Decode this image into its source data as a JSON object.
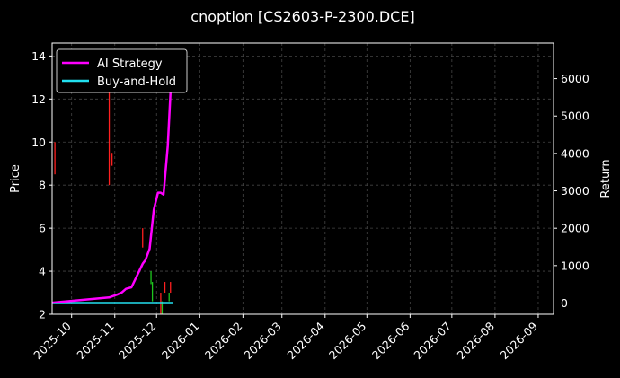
{
  "chart_data": {
    "type": "line",
    "title": "cnoption [CS2603-P-2300.DCE]",
    "ylabel_left": "Price",
    "ylabel_right": "Return",
    "background": "#000000",
    "grid": true,
    "legend_placement": "top-left",
    "x_ticks": [
      "2025-10",
      "2025-11",
      "2025-12",
      "2026-01",
      "2026-02",
      "2026-03",
      "2026-04",
      "2026-05",
      "2026-06",
      "2026-07",
      "2026-08",
      "2026-09"
    ],
    "x_range": [
      "2025-09-17",
      "2026-09-12"
    ],
    "y_left_ticks": [
      2,
      4,
      6,
      8,
      10,
      12,
      14
    ],
    "y_left_range": [
      2,
      14.6
    ],
    "y_right_ticks": [
      0,
      1000,
      2000,
      3000,
      4000,
      5000,
      6000
    ],
    "y_right_range": [
      -300,
      6950
    ],
    "legend": [
      {
        "name": "AI Strategy",
        "color": "#ff00ff"
      },
      {
        "name": "Buy-and-Hold",
        "color": "#22e0f0"
      }
    ],
    "series": [
      {
        "name": "AI Strategy",
        "axis": "right",
        "color": "#ff00ff",
        "points": [
          [
            "2025-09-17",
            10
          ],
          [
            "2025-10-28",
            150
          ],
          [
            "2025-11-03",
            230
          ],
          [
            "2025-11-06",
            280
          ],
          [
            "2025-11-09",
            380
          ],
          [
            "2025-11-13",
            420
          ],
          [
            "2025-11-21",
            1050
          ],
          [
            "2025-11-23",
            1150
          ],
          [
            "2025-11-26",
            1450
          ],
          [
            "2025-11-29",
            2500
          ],
          [
            "2025-12-02",
            2950
          ],
          [
            "2025-12-04",
            2950
          ],
          [
            "2025-12-06",
            2900
          ],
          [
            "2025-12-09",
            4200
          ],
          [
            "2025-12-12",
            6350
          ],
          [
            "2025-12-13",
            6700
          ]
        ]
      },
      {
        "name": "Buy-and-Hold",
        "axis": "right",
        "color": "#22e0f0",
        "points": [
          [
            "2025-09-17",
            0
          ],
          [
            "2025-12-13",
            0
          ]
        ]
      }
    ],
    "candles": [
      {
        "date": "2025-09-19",
        "low": 8.5,
        "high": 10.0,
        "color": "#ff2020"
      },
      {
        "date": "2025-10-28",
        "low": 8.0,
        "high": 12.6,
        "color": "#ff2020"
      },
      {
        "date": "2025-10-30",
        "low": 8.9,
        "high": 9.5,
        "color": "#ff2020"
      },
      {
        "date": "2025-11-21",
        "low": 5.1,
        "high": 6.0,
        "color": "#ff2020"
      },
      {
        "date": "2025-11-27",
        "low": 3.4,
        "high": 4.0,
        "color": "#1ec81e"
      },
      {
        "date": "2025-11-28",
        "low": 2.6,
        "high": 3.5,
        "color": "#1ec81e"
      },
      {
        "date": "2025-12-04",
        "low": 2.0,
        "high": 3.0,
        "color": "#ff2020"
      },
      {
        "date": "2025-12-05",
        "low": 2.0,
        "high": 2.6,
        "color": "#1ec81e"
      },
      {
        "date": "2025-12-07",
        "low": 3.0,
        "high": 3.5,
        "color": "#ff2020"
      },
      {
        "date": "2025-12-10",
        "low": 2.6,
        "high": 3.0,
        "color": "#1ec81e"
      },
      {
        "date": "2025-12-11",
        "low": 3.0,
        "high": 3.5,
        "color": "#ff2020"
      }
    ]
  }
}
